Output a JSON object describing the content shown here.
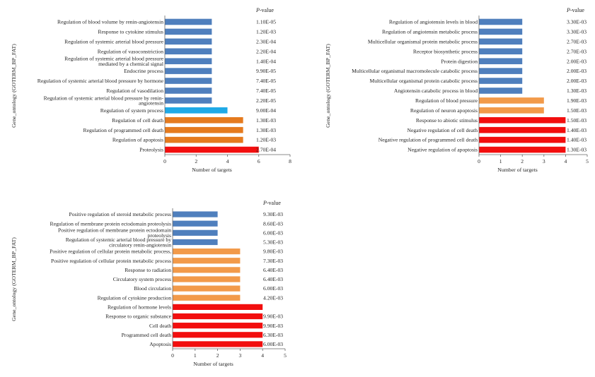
{
  "colors": {
    "blue": "#4f7fbd",
    "cyan": "#1fa9e6",
    "orange_dark": "#e57a1e",
    "orange_light": "#f29a4a",
    "red": "#f20e0e"
  },
  "chart_data": [
    {
      "type": "bar",
      "orientation": "horizontal",
      "ylabel": "Gene_ontology (GOTERM_BP_FAT)",
      "xlabel": "Number of targets",
      "xlim": [
        0,
        8
      ],
      "xticks": [
        "0",
        "2",
        "4",
        "6",
        "8"
      ],
      "pvalue_header": "P-value",
      "categories": [
        [
          "Regulation of blood volume by renin-angiotensin"
        ],
        [
          "Response to cytokine stimulus"
        ],
        [
          "Regulation of systemic arterial blood pressure"
        ],
        [
          "Regulation of vasoconstriction"
        ],
        [
          "Regulation of systemic arterial blood pressure",
          "mediated by a chemical signal"
        ],
        [
          "Endocrine process"
        ],
        [
          "Regulation of systemic arterial blood pressure by hormone"
        ],
        [
          "Regulation of vasodilation"
        ],
        [
          "Regulation of systemic arterial blood pressure by renin-",
          "angiotensin"
        ],
        [
          "Regulation of system process"
        ],
        [
          "Regulation of cell death"
        ],
        [
          "Regulation of programmed cell death"
        ],
        [
          "Regulation of apoptosis"
        ],
        [
          "Proteolysis"
        ]
      ],
      "values": [
        3,
        3,
        3,
        3,
        3,
        3,
        3,
        3,
        3,
        4,
        5,
        5,
        5,
        6
      ],
      "pvalues": [
        "1.10E-05",
        "1.20E-03",
        "2.30E-04",
        "2.20E-04",
        "1.40E-04",
        "9.90E-05",
        "7.40E-05",
        "7.40E-05",
        "2.20E-05",
        "9.00E-04",
        "1.30E-03",
        "1.30E-03",
        "1.20E-03",
        "2.70E-04"
      ],
      "colors": [
        "blue",
        "blue",
        "blue",
        "blue",
        "blue",
        "blue",
        "blue",
        "blue",
        "blue",
        "cyan",
        "orange_dark",
        "orange_dark",
        "orange_dark",
        "red"
      ]
    },
    {
      "type": "bar",
      "orientation": "horizontal",
      "ylabel": "Gene_ontology (GOTERM_BP_FAT)",
      "xlabel": "Number of targets",
      "xlim": [
        0,
        5
      ],
      "xticks": [
        "0",
        "1",
        "2",
        "3",
        "4",
        "5"
      ],
      "pvalue_header": "P-value",
      "categories": [
        [
          "Regulation of angiotensin levels in blood"
        ],
        [
          "Regulation of angiotensin metabolic process"
        ],
        [
          "Multicellular organismal protein metabolic process"
        ],
        [
          "Receptor biosynthetic process"
        ],
        [
          "Protein digestion"
        ],
        [
          "Multicellular organismal macromolecule catabolic process"
        ],
        [
          "Multicellular organismal protein catabolic process"
        ],
        [
          "Angiotensin catabolic process in blood"
        ],
        [
          "Regulation of blood pressure"
        ],
        [
          "Regulation of neuron apoptosis"
        ],
        [
          "Response to abiotic stimulus"
        ],
        [
          "Negative regulation of cell death"
        ],
        [
          "Negative regulation of programmed cell death"
        ],
        [
          "Negative regulation of apoptosis"
        ]
      ],
      "values": [
        2,
        2,
        2,
        2,
        2,
        2,
        2,
        2,
        3,
        3,
        4,
        4,
        4,
        4
      ],
      "pvalues": [
        "3.30E-03",
        "3.30E-03",
        "2.70E-03",
        "2.70E-03",
        "2.00E-03",
        "2.00E-03",
        "2.00E-03",
        "1.30E-03",
        "1.90E-03",
        "1.50E-03",
        "1.50E-03",
        "1.40E-03",
        "1.40E-03",
        "1.30E-03"
      ],
      "colors": [
        "blue",
        "blue",
        "blue",
        "blue",
        "blue",
        "blue",
        "blue",
        "blue",
        "orange_light",
        "orange_light",
        "red",
        "red",
        "red",
        "red"
      ]
    },
    {
      "type": "bar",
      "orientation": "horizontal",
      "ylabel": "Gene_ontology (GOTERM_BP_FAT)",
      "xlabel": "Number of targets",
      "xlim": [
        0,
        5
      ],
      "xticks": [
        "0",
        "1",
        "2",
        "3",
        "4",
        "5"
      ],
      "pvalue_header": "P-value",
      "categories": [
        [
          "Positive regulation of steroid metabolic process"
        ],
        [
          "Regulation of membrane protein ectodomain proteolysis"
        ],
        [
          "Positive regulation of membrane protein ectodomain",
          "proteolysis"
        ],
        [
          "Regulation of systemic arterial blood pressure by",
          "circulatory renin-angiotensin"
        ],
        [
          "Positive regulation of cellular protein metabolic process,"
        ],
        [
          "Positive regulation of cellular protein metabolic process"
        ],
        [
          "Response to radiation"
        ],
        [
          "Circulatory system process"
        ],
        [
          "Blood circulation"
        ],
        [
          "Regulation of cytokine production"
        ],
        [
          "Regulation of hormone levels"
        ],
        [
          "Response to organic substance"
        ],
        [
          "Cell death"
        ],
        [
          "Programmed cell death"
        ],
        [
          "Apoptosis"
        ]
      ],
      "values": [
        2,
        2,
        2,
        2,
        3,
        3,
        3,
        3,
        3,
        3,
        4,
        4,
        4,
        4,
        4
      ],
      "pvalues": [
        "9.30E-03",
        "8.60E-03",
        "6.00E-03",
        "5.30E-03",
        "9.80E-03",
        "7.30E-03",
        "6.40E-03",
        "6.40E-03",
        "6.00E-03",
        "4.20E-03",
        "9.90E-03",
        "9.90E-03",
        "6.30E-03",
        "6.00E-03"
      ],
      "pvalue_rows": [
        0,
        1,
        2,
        3,
        4,
        5,
        6,
        7,
        8,
        9,
        11,
        12,
        13,
        14
      ],
      "colors": [
        "blue",
        "blue",
        "blue",
        "blue",
        "orange_light",
        "orange_light",
        "orange_light",
        "orange_light",
        "orange_light",
        "orange_light",
        "red",
        "red",
        "red",
        "red",
        "red"
      ]
    }
  ]
}
